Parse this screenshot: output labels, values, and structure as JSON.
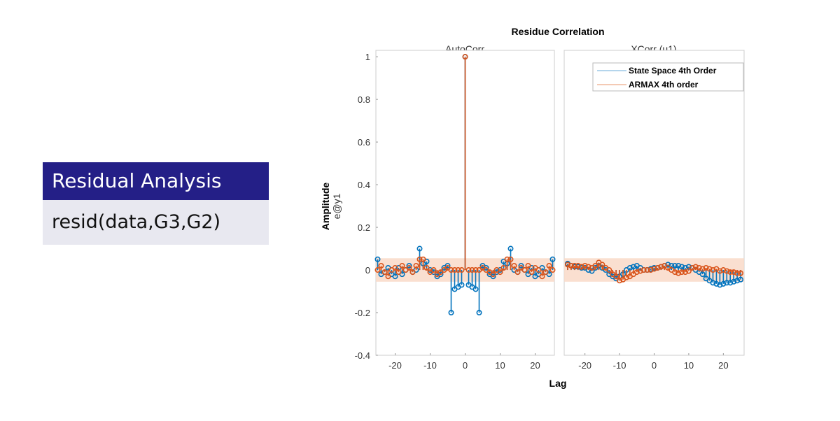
{
  "slide": {
    "title": "Residual Analysis",
    "code": "resid(data,G3,G2)"
  },
  "colors": {
    "series1": "#0072bd",
    "series2": "#d95319",
    "band": "#f9d9c8",
    "slide_title_bg": "#241f87",
    "slide_code_bg": "#e8e8f0"
  },
  "chart_data": [
    {
      "type": "stem",
      "title": "Residue Correlation",
      "subtitle": "AutoCorr",
      "xlabel": "Lag",
      "ylabel": "Amplitude",
      "ylabel2": "e@y1",
      "xlim": [
        -25.5,
        25.5
      ],
      "ylim": [
        -0.4,
        1.03
      ],
      "xticks": [
        -20,
        -10,
        0,
        10,
        20
      ],
      "yticks": [
        -0.4,
        -0.2,
        0,
        0.2,
        0.4,
        0.6,
        0.8,
        1
      ],
      "confidence_band": [
        -0.055,
        0.055
      ],
      "x": [
        -25,
        -24,
        -23,
        -22,
        -21,
        -20,
        -19,
        -18,
        -17,
        -16,
        -15,
        -14,
        -13,
        -12,
        -11,
        -10,
        -9,
        -8,
        -7,
        -6,
        -5,
        -4,
        -3,
        -2,
        -1,
        0,
        1,
        2,
        3,
        4,
        5,
        6,
        7,
        8,
        9,
        10,
        11,
        12,
        13,
        14,
        15,
        16,
        17,
        18,
        19,
        20,
        21,
        22,
        23,
        24,
        25
      ],
      "series": [
        {
          "name": "State Space 4th Order",
          "values": [
            0.05,
            -0.02,
            -0.01,
            0.01,
            -0.02,
            -0.03,
            0.01,
            -0.02,
            0,
            0.02,
            -0.01,
            0,
            0.1,
            0.03,
            0.04,
            0,
            -0.01,
            -0.03,
            -0.02,
            0.01,
            0.02,
            -0.2,
            -0.09,
            -0.08,
            -0.07,
            1,
            -0.07,
            -0.08,
            -0.09,
            -0.2,
            0.02,
            0.01,
            -0.02,
            -0.03,
            -0.01,
            0,
            0.04,
            0.03,
            0.1,
            0,
            -0.01,
            0.02,
            0,
            -0.02,
            0.01,
            -0.03,
            -0.02,
            0.01,
            -0.01,
            -0.02,
            0.05
          ]
        },
        {
          "name": "ARMAX 4th order",
          "values": [
            0,
            0.02,
            -0.01,
            -0.03,
            0,
            0.01,
            -0.01,
            0.02,
            0,
            0.01,
            -0.01,
            0.02,
            0.05,
            0.05,
            0.01,
            -0.01,
            0,
            -0.02,
            -0.01,
            0,
            0.01,
            0,
            0,
            0,
            0,
            1,
            0,
            0,
            0,
            0,
            0.01,
            0,
            -0.01,
            -0.02,
            0,
            -0.01,
            0.01,
            0.05,
            0.05,
            0.02,
            -0.01,
            0.01,
            0,
            0.02,
            -0.01,
            0.01,
            0,
            -0.03,
            -0.01,
            0.02,
            0
          ]
        }
      ]
    },
    {
      "type": "stem",
      "subtitle": "XCorr (u1)",
      "xlim": [
        -26,
        26
      ],
      "ylim": [
        -0.4,
        1.03
      ],
      "xticks": [
        -20,
        -10,
        0,
        10,
        20
      ],
      "confidence_band": [
        -0.055,
        0.055
      ],
      "legend": {
        "placement": "top-right",
        "entries": [
          "State Space 4th Order",
          "ARMAX 4th order"
        ]
      },
      "x": [
        -25,
        -24,
        -23,
        -22,
        -21,
        -20,
        -19,
        -18,
        -17,
        -16,
        -15,
        -14,
        -13,
        -12,
        -11,
        -10,
        -9,
        -8,
        -7,
        -6,
        -5,
        -4,
        -3,
        -2,
        -1,
        0,
        1,
        2,
        3,
        4,
        5,
        6,
        7,
        8,
        9,
        10,
        11,
        12,
        13,
        14,
        15,
        16,
        17,
        18,
        19,
        20,
        21,
        22,
        23,
        24,
        25
      ],
      "series": [
        {
          "name": "State Space 4th Order",
          "values": [
            0.03,
            0.02,
            0.015,
            0.015,
            0.01,
            0.01,
            0,
            -0.005,
            0.01,
            0.02,
            0.01,
            0,
            -0.02,
            -0.03,
            -0.04,
            -0.03,
            -0.02,
            0,
            0.01,
            0.015,
            0.02,
            0.01,
            0,
            0,
            0.005,
            0.01,
            0.01,
            0.015,
            0.02,
            0.025,
            0.02,
            0.02,
            0.02,
            0.015,
            0.01,
            0.015,
            0.01,
            0,
            -0.01,
            -0.02,
            -0.04,
            -0.05,
            -0.06,
            -0.065,
            -0.07,
            -0.065,
            -0.06,
            -0.06,
            -0.055,
            -0.05,
            -0.045
          ]
        },
        {
          "name": "ARMAX 4th order",
          "values": [
            0.025,
            0.02,
            0.02,
            0.02,
            0.015,
            0.02,
            0.015,
            0.01,
            0.02,
            0.035,
            0.025,
            0.01,
            0,
            -0.02,
            -0.03,
            -0.05,
            -0.045,
            -0.035,
            -0.03,
            -0.02,
            -0.01,
            -0.005,
            0,
            0,
            0,
            0.005,
            0.01,
            0.015,
            0.02,
            0.01,
            0,
            -0.01,
            -0.015,
            -0.01,
            -0.01,
            -0.005,
            0.01,
            0.015,
            0.01,
            0.005,
            0.01,
            0.005,
            0,
            0.005,
            -0.005,
            0,
            -0.005,
            -0.01,
            -0.01,
            -0.015,
            -0.015
          ]
        }
      ]
    }
  ]
}
